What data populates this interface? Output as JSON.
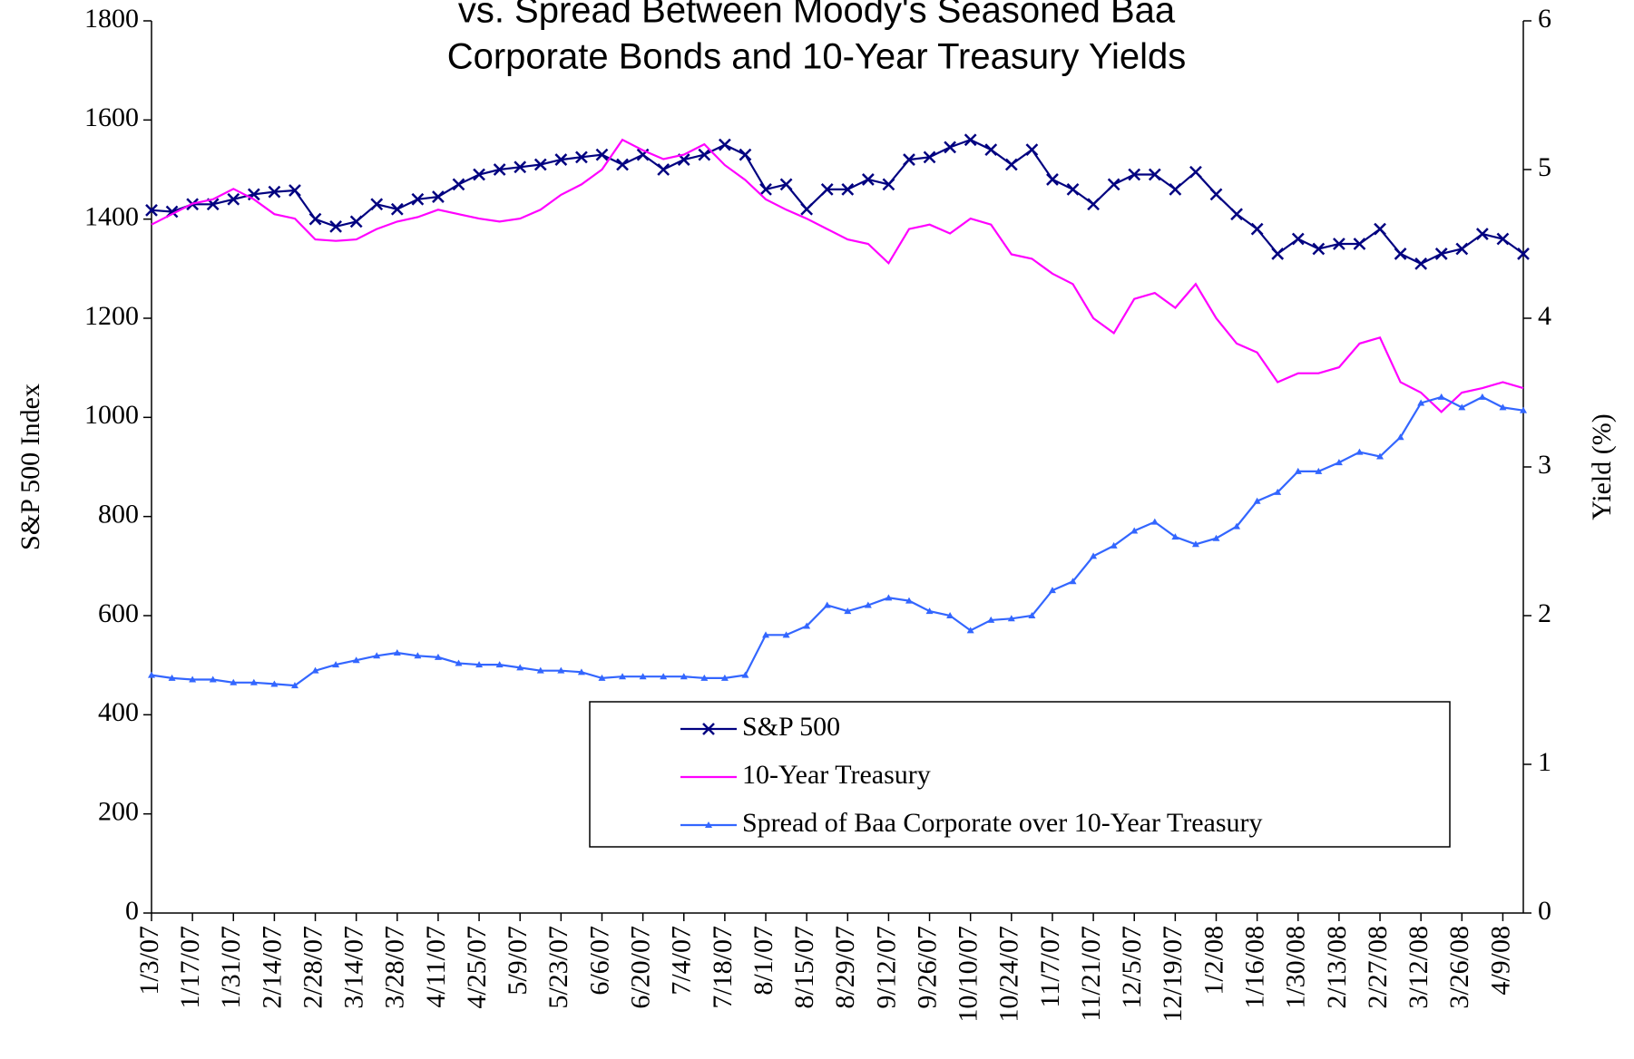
{
  "chart_data": {
    "type": "line",
    "title": [
      "vs. Spread Between Moody's Seasoned Baa",
      "Corporate Bonds and 10-Year Treasury Yields"
    ],
    "ylabel": "S&P 500 Index",
    "y2label": "Yield (%)",
    "categories": [
      "1/3/07",
      null,
      "1/17/07",
      null,
      "1/31/07",
      null,
      "2/14/07",
      null,
      "2/28/07",
      null,
      "3/14/07",
      null,
      "3/28/07",
      null,
      "4/11/07",
      null,
      "4/25/07",
      null,
      "5/9/07",
      null,
      "5/23/07",
      null,
      "6/6/07",
      null,
      "6/20/07",
      null,
      "7/4/07",
      null,
      "7/18/07",
      null,
      "8/1/07",
      null,
      "8/15/07",
      null,
      "8/29/07",
      null,
      "9/12/07",
      null,
      "9/26/07",
      null,
      "10/10/07",
      null,
      "10/24/07",
      null,
      "11/7/07",
      null,
      "11/21/07",
      null,
      "12/5/07",
      null,
      "12/19/07",
      null,
      "1/2/08",
      null,
      "1/16/08",
      null,
      "1/30/08",
      null,
      "2/13/08",
      null,
      "2/27/08",
      null,
      "3/12/08",
      null,
      "3/26/08",
      null,
      "4/9/08",
      null
    ],
    "ylim": [
      0,
      1800
    ],
    "yticks": [
      0,
      200,
      400,
      600,
      800,
      1000,
      1200,
      1400,
      1600,
      1800
    ],
    "y2lim": [
      0,
      6
    ],
    "y2ticks": [
      0,
      1,
      2,
      3,
      4,
      5,
      6
    ],
    "grid": false,
    "legend": "bottom-right",
    "series": [
      {
        "name": "S&P 500",
        "color": "#000080",
        "marker": "x",
        "values": [
          1418,
          1415,
          1430,
          1430,
          1440,
          1450,
          1455,
          1458,
          1400,
          1385,
          1395,
          1430,
          1420,
          1440,
          1445,
          1470,
          1490,
          1500,
          1505,
          1510,
          1520,
          1525,
          1530,
          1510,
          1530,
          1500,
          1520,
          1530,
          1550,
          1530,
          1460,
          1470,
          1420,
          1460,
          1460,
          1480,
          1470,
          1520,
          1525,
          1545,
          1560,
          1540,
          1510,
          1540,
          1480,
          1460,
          1430,
          1470,
          1490,
          1490,
          1460,
          1495,
          1450,
          1410,
          1380,
          1330,
          1360,
          1340,
          1350,
          1350,
          1380,
          1330,
          1310,
          1330,
          1340,
          1370,
          1360,
          1330
        ]
      },
      {
        "name": "10-Year Treasury",
        "color": "#ff00ff",
        "axis": "y2",
        "marker": "none",
        "values": [
          4.63,
          4.7,
          4.77,
          4.8,
          4.87,
          4.8,
          4.7,
          4.67,
          4.53,
          4.52,
          4.53,
          4.6,
          4.65,
          4.68,
          4.73,
          4.7,
          4.67,
          4.65,
          4.67,
          4.73,
          4.83,
          4.9,
          5.0,
          5.2,
          5.13,
          5.07,
          5.1,
          5.17,
          5.03,
          4.93,
          4.8,
          4.73,
          4.67,
          4.6,
          4.53,
          4.5,
          4.37,
          4.6,
          4.63,
          4.57,
          4.67,
          4.63,
          4.43,
          4.4,
          4.3,
          4.23,
          4.0,
          3.9,
          4.13,
          4.17,
          4.07,
          4.23,
          4.0,
          3.83,
          3.77,
          3.57,
          3.63,
          3.63,
          3.67,
          3.83,
          3.87,
          3.57,
          3.5,
          3.37,
          3.5,
          3.53,
          3.57,
          3.53
        ]
      },
      {
        "name": "Spread of Baa Corporate over 10-Year Treasury",
        "color": "#3366ff",
        "axis": "y2",
        "marker": "triangle",
        "values": [
          1.6,
          1.58,
          1.57,
          1.57,
          1.55,
          1.55,
          1.54,
          1.53,
          1.63,
          1.67,
          1.7,
          1.73,
          1.75,
          1.73,
          1.72,
          1.68,
          1.67,
          1.67,
          1.65,
          1.63,
          1.63,
          1.62,
          1.58,
          1.59,
          1.59,
          1.59,
          1.59,
          1.58,
          1.58,
          1.6,
          1.87,
          1.87,
          1.93,
          2.07,
          2.03,
          2.07,
          2.12,
          2.1,
          2.03,
          2.0,
          1.9,
          1.97,
          1.98,
          2.0,
          2.17,
          2.23,
          2.4,
          2.47,
          2.57,
          2.63,
          2.53,
          2.48,
          2.52,
          2.6,
          2.77,
          2.83,
          2.97,
          2.97,
          3.03,
          3.1,
          3.07,
          3.2,
          3.43,
          3.47,
          3.4,
          3.47,
          3.4,
          3.38
        ]
      }
    ]
  }
}
